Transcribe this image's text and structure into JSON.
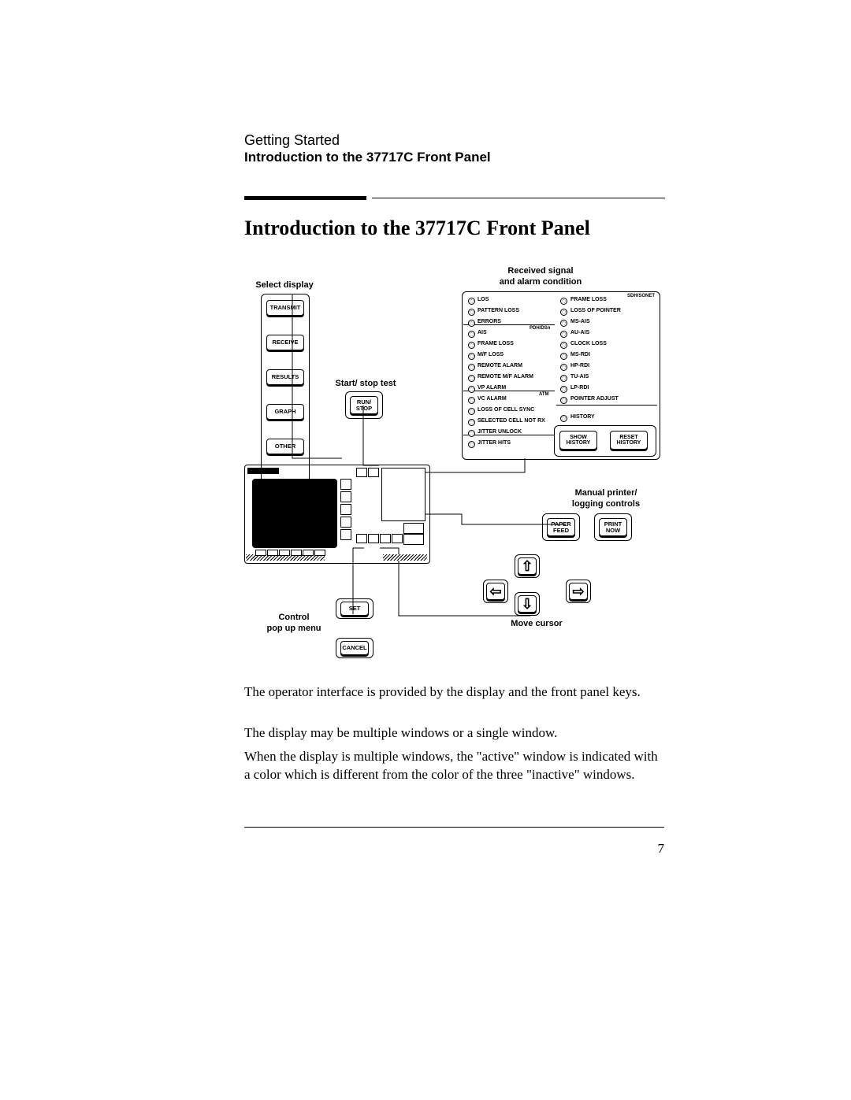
{
  "header": {
    "top": "Getting Started",
    "sub": "Introduction to the 37717C Front Panel"
  },
  "title": "Introduction to the 37717C Front Panel",
  "labels": {
    "select_display": "Select display",
    "received_signal_l1": "Received signal",
    "received_signal_l2": "and alarm condition",
    "start_stop": "Start/ stop test",
    "printer_l1": "Manual printer/",
    "printer_l2": "logging controls",
    "move_cursor": "Move cursor",
    "control_l1": "Control",
    "control_l2": "pop up menu"
  },
  "keys": {
    "transmit": "TRANSMIT",
    "receive": "RECEIVE",
    "results": "RESULTS",
    "graph": "GRAPH",
    "other": "OTHER",
    "run_stop_l1": "RUN/",
    "run_stop_l2": "STOP",
    "set": "SET",
    "cancel": "CANCEL",
    "paper_feed_l1": "PAPER",
    "paper_feed_l2": "FEED",
    "print_now_l1": "PRINT",
    "print_now_l2": "NOW",
    "show_hist_l1": "SHOW",
    "show_hist_l2": "HISTORY",
    "reset_hist_l1": "RESET",
    "reset_hist_l2": "HISTORY",
    "history": "HISTORY",
    "up": "⇧",
    "down": "⇩",
    "left": "⇦",
    "right": "⇨"
  },
  "led_headers": {
    "pdh": "PDH/DSn",
    "atm": "ATM",
    "sdh": "SDH/SONET"
  },
  "leds_col1": [
    "LOS",
    "PATTERN LOSS",
    "ERRORS",
    "AIS",
    "FRAME LOSS",
    "M/F LOSS",
    "REMOTE ALARM",
    "REMOTE M/F ALARM",
    "VP ALARM",
    "VC ALARM",
    "LOSS OF CELL SYNC",
    "SELECTED CELL NOT RX",
    "JITTER UNLOCK",
    "JITTER HITS"
  ],
  "leds_col2": [
    "FRAME LOSS",
    "LOSS OF POINTER",
    "MS-AIS",
    "AU-AIS",
    "CLOCK LOSS",
    "MS-RDI",
    "HP-RDI",
    "TU-AIS",
    "LP-RDI",
    "POINTER ADJUST"
  ],
  "arrows": {
    "u": "⇧",
    "d": "⇩",
    "l": "⇦",
    "r": "⇨"
  },
  "body": {
    "p1": "The operator interface is provided by the display and the front panel keys.",
    "p2": "The display may be multiple windows or a single window.",
    "p3": "When the display is multiple windows, the \"active\" window is indicated with a color which is different from the color of the three \"inactive\" windows."
  },
  "pagenum": "7"
}
